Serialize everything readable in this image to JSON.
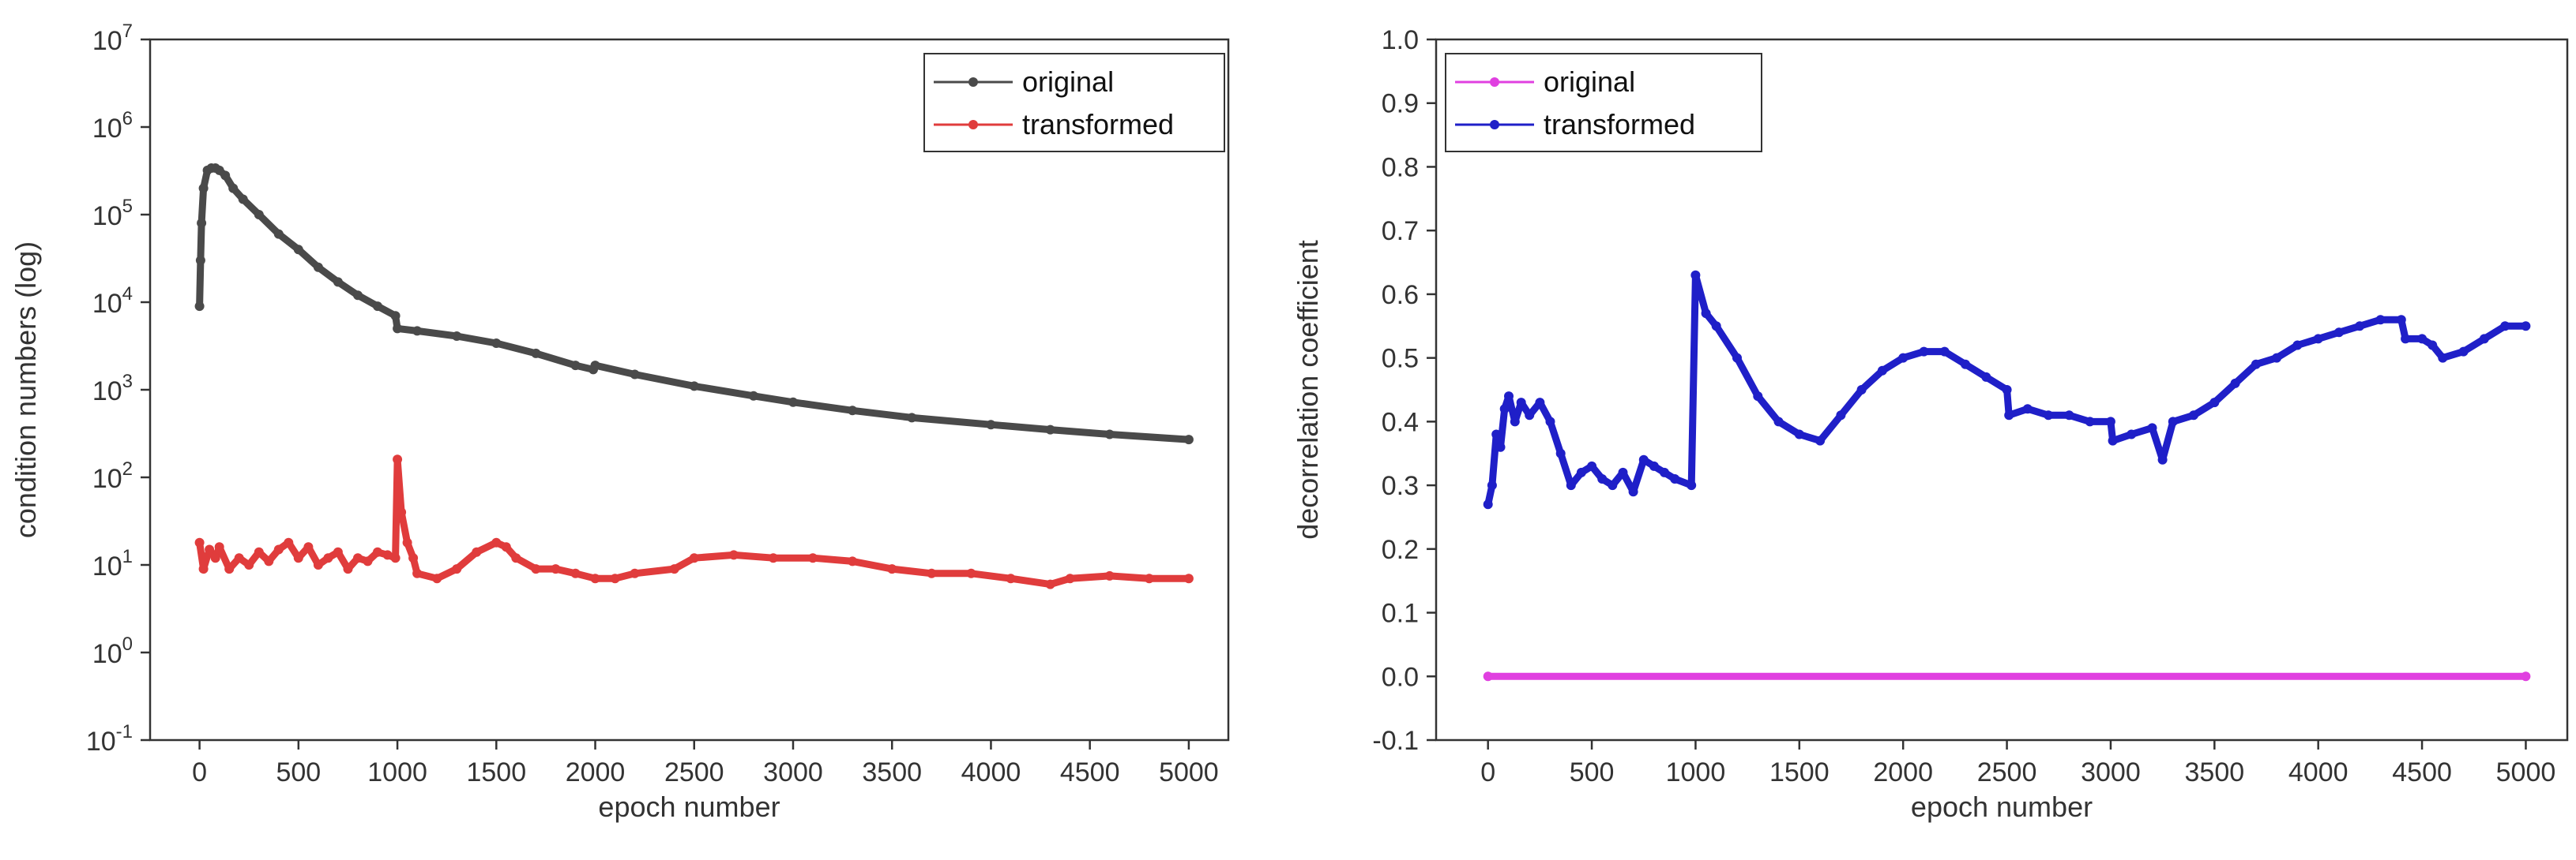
{
  "chart_data": [
    {
      "type": "line",
      "yscale": "log",
      "title": "",
      "xlabel": "epoch number",
      "ylabel": "condition numbers (log)",
      "xlim": [
        -250,
        5200
      ],
      "ylim_exp": [
        -1,
        7
      ],
      "x_ticks": [
        "0",
        "500",
        "1000",
        "1500",
        "2000",
        "2500",
        "3000",
        "3500",
        "4000",
        "4500",
        "5000"
      ],
      "x_tick_values": [
        0,
        500,
        1000,
        1500,
        2000,
        2500,
        3000,
        3500,
        4000,
        4500,
        5000
      ],
      "y_tick_exponents": [
        -1,
        0,
        1,
        2,
        3,
        4,
        5,
        6,
        7
      ],
      "y_tick_base": "10",
      "y_tick_sups": [
        "-1",
        "0",
        "1",
        "2",
        "3",
        "4",
        "5",
        "6",
        "7"
      ],
      "legend_position": "top-right",
      "series": [
        {
          "name": "original",
          "color": "#4a4a4a",
          "points": [
            [
              0,
              9000
            ],
            [
              5,
              30000
            ],
            [
              10,
              80000
            ],
            [
              20,
              200000
            ],
            [
              40,
              320000
            ],
            [
              60,
              340000
            ],
            [
              80,
              340000
            ],
            [
              100,
              320000
            ],
            [
              130,
              280000
            ],
            [
              170,
              200000
            ],
            [
              220,
              150000
            ],
            [
              300,
              100000
            ],
            [
              400,
              60000
            ],
            [
              500,
              40000
            ],
            [
              600,
              25000
            ],
            [
              700,
              17000
            ],
            [
              800,
              12000
            ],
            [
              900,
              9000
            ],
            [
              990,
              7000
            ],
            [
              1000,
              5000
            ],
            [
              1100,
              4700
            ],
            [
              1300,
              4100
            ],
            [
              1500,
              3400
            ],
            [
              1700,
              2600
            ],
            [
              1900,
              1900
            ],
            [
              1990,
              1700
            ],
            [
              2000,
              1900
            ],
            [
              2200,
              1500
            ],
            [
              2500,
              1100
            ],
            [
              2800,
              850
            ],
            [
              3000,
              720
            ],
            [
              3300,
              580
            ],
            [
              3600,
              480
            ],
            [
              4000,
              400
            ],
            [
              4300,
              350
            ],
            [
              4600,
              310
            ],
            [
              5000,
              270
            ]
          ]
        },
        {
          "name": "transformed",
          "color": "#e03c3c",
          "points": [
            [
              0,
              18
            ],
            [
              20,
              9
            ],
            [
              50,
              15
            ],
            [
              80,
              12
            ],
            [
              100,
              16
            ],
            [
              150,
              9
            ],
            [
              200,
              12
            ],
            [
              250,
              10
            ],
            [
              300,
              14
            ],
            [
              350,
              11
            ],
            [
              400,
              15
            ],
            [
              450,
              18
            ],
            [
              500,
              12
            ],
            [
              550,
              16
            ],
            [
              600,
              10
            ],
            [
              650,
              12
            ],
            [
              700,
              14
            ],
            [
              750,
              9
            ],
            [
              800,
              12
            ],
            [
              850,
              11
            ],
            [
              900,
              14
            ],
            [
              950,
              13
            ],
            [
              990,
              12
            ],
            [
              1000,
              160
            ],
            [
              1020,
              40
            ],
            [
              1050,
              18
            ],
            [
              1080,
              12
            ],
            [
              1100,
              8
            ],
            [
              1200,
              7
            ],
            [
              1300,
              9
            ],
            [
              1400,
              14
            ],
            [
              1500,
              18
            ],
            [
              1550,
              16
            ],
            [
              1600,
              12
            ],
            [
              1700,
              9
            ],
            [
              1800,
              9
            ],
            [
              1900,
              8
            ],
            [
              2000,
              7
            ],
            [
              2100,
              7
            ],
            [
              2200,
              8
            ],
            [
              2400,
              9
            ],
            [
              2500,
              12
            ],
            [
              2700,
              13
            ],
            [
              2900,
              12
            ],
            [
              3100,
              12
            ],
            [
              3300,
              11
            ],
            [
              3500,
              9
            ],
            [
              3700,
              8
            ],
            [
              3900,
              8
            ],
            [
              4100,
              7
            ],
            [
              4300,
              6
            ],
            [
              4400,
              7
            ],
            [
              4600,
              7.5
            ],
            [
              4800,
              7
            ],
            [
              5000,
              7
            ]
          ]
        }
      ]
    },
    {
      "type": "line",
      "yscale": "linear",
      "title": "",
      "xlabel": "epoch number",
      "ylabel": "decorrelation coefficient",
      "xlim": [
        -250,
        5200
      ],
      "ylim": [
        -0.1,
        1.0
      ],
      "x_ticks": [
        "0",
        "500",
        "1000",
        "1500",
        "2000",
        "2500",
        "3000",
        "3500",
        "4000",
        "4500",
        "5000"
      ],
      "x_tick_values": [
        0,
        500,
        1000,
        1500,
        2000,
        2500,
        3000,
        3500,
        4000,
        4500,
        5000
      ],
      "y_ticks": [
        "-0.1",
        "0.0",
        "0.1",
        "0.2",
        "0.3",
        "0.4",
        "0.5",
        "0.6",
        "0.7",
        "0.8",
        "0.9",
        "1.0"
      ],
      "y_tick_values": [
        -0.1,
        0.0,
        0.1,
        0.2,
        0.3,
        0.4,
        0.5,
        0.6,
        0.7,
        0.8,
        0.9,
        1.0
      ],
      "legend_position": "top-left",
      "series": [
        {
          "name": "original",
          "color": "#e040e0",
          "points": [
            [
              0,
              0.0
            ],
            [
              5000,
              0.0
            ]
          ]
        },
        {
          "name": "transformed",
          "color": "#1f1fc8",
          "points": [
            [
              0,
              0.27
            ],
            [
              20,
              0.3
            ],
            [
              40,
              0.38
            ],
            [
              60,
              0.36
            ],
            [
              80,
              0.42
            ],
            [
              100,
              0.44
            ],
            [
              130,
              0.4
            ],
            [
              160,
              0.43
            ],
            [
              200,
              0.41
            ],
            [
              250,
              0.43
            ],
            [
              300,
              0.4
            ],
            [
              350,
              0.35
            ],
            [
              400,
              0.3
            ],
            [
              450,
              0.32
            ],
            [
              500,
              0.33
            ],
            [
              550,
              0.31
            ],
            [
              600,
              0.3
            ],
            [
              650,
              0.32
            ],
            [
              700,
              0.29
            ],
            [
              750,
              0.34
            ],
            [
              800,
              0.33
            ],
            [
              850,
              0.32
            ],
            [
              900,
              0.31
            ],
            [
              980,
              0.3
            ],
            [
              1000,
              0.63
            ],
            [
              1050,
              0.57
            ],
            [
              1100,
              0.55
            ],
            [
              1200,
              0.5
            ],
            [
              1300,
              0.44
            ],
            [
              1400,
              0.4
            ],
            [
              1500,
              0.38
            ],
            [
              1600,
              0.37
            ],
            [
              1700,
              0.41
            ],
            [
              1800,
              0.45
            ],
            [
              1900,
              0.48
            ],
            [
              2000,
              0.5
            ],
            [
              2100,
              0.51
            ],
            [
              2200,
              0.51
            ],
            [
              2300,
              0.49
            ],
            [
              2400,
              0.47
            ],
            [
              2500,
              0.45
            ],
            [
              2510,
              0.41
            ],
            [
              2600,
              0.42
            ],
            [
              2700,
              0.41
            ],
            [
              2800,
              0.41
            ],
            [
              2900,
              0.4
            ],
            [
              3000,
              0.4
            ],
            [
              3010,
              0.37
            ],
            [
              3100,
              0.38
            ],
            [
              3200,
              0.39
            ],
            [
              3250,
              0.34
            ],
            [
              3300,
              0.4
            ],
            [
              3400,
              0.41
            ],
            [
              3500,
              0.43
            ],
            [
              3600,
              0.46
            ],
            [
              3700,
              0.49
            ],
            [
              3800,
              0.5
            ],
            [
              3900,
              0.52
            ],
            [
              4000,
              0.53
            ],
            [
              4100,
              0.54
            ],
            [
              4200,
              0.55
            ],
            [
              4300,
              0.56
            ],
            [
              4400,
              0.56
            ],
            [
              4420,
              0.53
            ],
            [
              4500,
              0.53
            ],
            [
              4550,
              0.52
            ],
            [
              4600,
              0.5
            ],
            [
              4700,
              0.51
            ],
            [
              4800,
              0.53
            ],
            [
              4900,
              0.55
            ],
            [
              5000,
              0.55
            ]
          ]
        }
      ]
    }
  ]
}
